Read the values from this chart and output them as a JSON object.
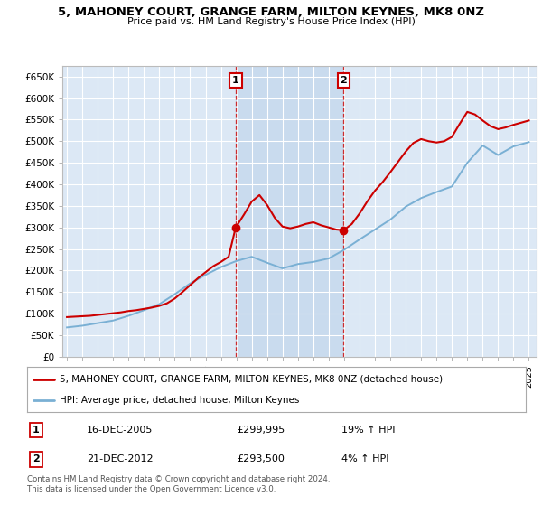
{
  "title": "5, MAHONEY COURT, GRANGE FARM, MILTON KEYNES, MK8 0NZ",
  "subtitle": "Price paid vs. HM Land Registry's House Price Index (HPI)",
  "ylim": [
    0,
    675000
  ],
  "yticks": [
    0,
    50000,
    100000,
    150000,
    200000,
    250000,
    300000,
    350000,
    400000,
    450000,
    500000,
    550000,
    600000,
    650000
  ],
  "ytick_labels": [
    "£0",
    "£50K",
    "£100K",
    "£150K",
    "£200K",
    "£250K",
    "£300K",
    "£350K",
    "£400K",
    "£450K",
    "£500K",
    "£550K",
    "£600K",
    "£650K"
  ],
  "bg_color": "#dce8f5",
  "fig_color": "#ffffff",
  "grid_color": "#ffffff",
  "sale1_date": 2005.96,
  "sale1_price": 299995,
  "sale1_label": "1",
  "sale2_date": 2012.97,
  "sale2_price": 293500,
  "sale2_label": "2",
  "sale1_hpi_pct": "19% ↑ HPI",
  "sale2_hpi_pct": "4% ↑ HPI",
  "sale1_date_str": "16-DEC-2005",
  "sale1_price_str": "£299,995",
  "sale2_date_str": "21-DEC-2012",
  "sale2_price_str": "£293,500",
  "legend_line1": "5, MAHONEY COURT, GRANGE FARM, MILTON KEYNES, MK8 0NZ (detached house)",
  "legend_line2": "HPI: Average price, detached house, Milton Keynes",
  "footer": "Contains HM Land Registry data © Crown copyright and database right 2024.\nThis data is licensed under the Open Government Licence v3.0.",
  "red_color": "#cc0000",
  "blue_color": "#7ab0d4",
  "annotation_box_color": "#cc0000",
  "highlight_bg": "#b8d0e8",
  "hpi_x": [
    1995,
    1996,
    1997,
    1998,
    1999,
    2000,
    2001,
    2002,
    2003,
    2004,
    2005,
    2006,
    2007,
    2008,
    2009,
    2010,
    2011,
    2012,
    2013,
    2014,
    2015,
    2016,
    2017,
    2018,
    2019,
    2020,
    2021,
    2022,
    2023,
    2024,
    2025
  ],
  "hpi_y": [
    68000,
    72000,
    78000,
    84000,
    95000,
    108000,
    122000,
    145000,
    170000,
    190000,
    208000,
    222000,
    232000,
    218000,
    205000,
    215000,
    220000,
    228000,
    248000,
    272000,
    295000,
    318000,
    348000,
    368000,
    382000,
    395000,
    450000,
    490000,
    468000,
    488000,
    498000
  ],
  "price_x": [
    1995.0,
    1995.5,
    1996.0,
    1996.5,
    1997.0,
    1997.5,
    1998.0,
    1998.5,
    1999.0,
    1999.5,
    2000.0,
    2000.5,
    2001.0,
    2001.5,
    2002.0,
    2002.5,
    2003.0,
    2003.5,
    2004.0,
    2004.5,
    2005.0,
    2005.5,
    2005.96,
    2006.5,
    2007.0,
    2007.5,
    2008.0,
    2008.5,
    2009.0,
    2009.5,
    2010.0,
    2010.5,
    2011.0,
    2011.5,
    2012.0,
    2012.5,
    2012.97,
    2013.5,
    2014.0,
    2014.5,
    2015.0,
    2015.5,
    2016.0,
    2016.5,
    2017.0,
    2017.5,
    2018.0,
    2018.5,
    2019.0,
    2019.5,
    2020.0,
    2020.5,
    2021.0,
    2021.5,
    2022.0,
    2022.5,
    2023.0,
    2023.5,
    2024.0,
    2024.5,
    2025.0
  ],
  "price_y": [
    92000,
    93000,
    94000,
    95000,
    97000,
    99000,
    101000,
    103000,
    106000,
    108000,
    111000,
    114000,
    118000,
    124000,
    135000,
    150000,
    166000,
    182000,
    196000,
    210000,
    220000,
    232000,
    299995,
    330000,
    360000,
    375000,
    352000,
    322000,
    302000,
    298000,
    302000,
    308000,
    312000,
    305000,
    300000,
    295000,
    293500,
    308000,
    332000,
    360000,
    385000,
    405000,
    428000,
    452000,
    476000,
    496000,
    505000,
    500000,
    497000,
    500000,
    510000,
    540000,
    568000,
    562000,
    548000,
    535000,
    528000,
    532000,
    538000,
    543000,
    548000
  ]
}
